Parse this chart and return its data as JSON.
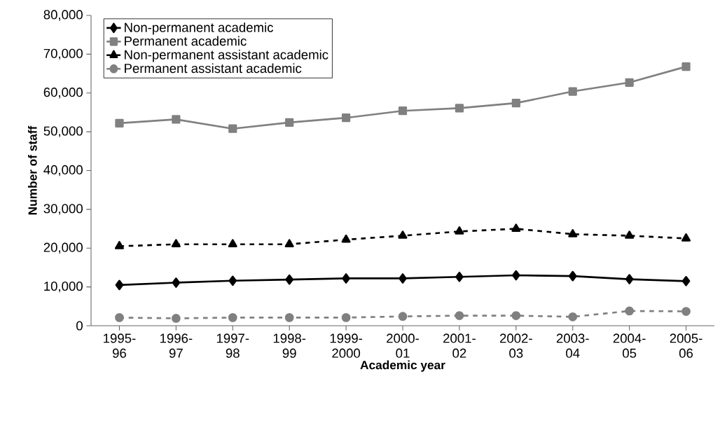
{
  "chart_data": {
    "type": "line",
    "xlabel": "Academic year",
    "ylabel": "Number of staff",
    "categories": [
      "1995-96",
      "1996-97",
      "1997-98",
      "1998-99",
      "1999-2000",
      "2000-01",
      "2001-02",
      "2002-03",
      "2003-04",
      "2004-05",
      "2005-06"
    ],
    "series": [
      {
        "name": "Non-permanent academic",
        "color": "#000000",
        "marker": "diamond",
        "line_style": "solid",
        "values": [
          10500,
          11100,
          11600,
          11900,
          12200,
          12200,
          12600,
          13000,
          12800,
          12000,
          11500
        ]
      },
      {
        "name": "Permanent academic",
        "color": "#808080",
        "marker": "square",
        "line_style": "solid",
        "values": [
          52200,
          53200,
          50800,
          52400,
          53600,
          55400,
          56100,
          57400,
          60400,
          62700,
          66800
        ]
      },
      {
        "name": "Non-permanent assistant academic",
        "color": "#000000",
        "marker": "triangle",
        "line_style": "dashed",
        "values": [
          20500,
          21000,
          21000,
          21000,
          22200,
          23200,
          24300,
          25000,
          23600,
          23200,
          22500
        ]
      },
      {
        "name": "Permanent assistant academic",
        "color": "#808080",
        "marker": "circle",
        "line_style": "dashed",
        "values": [
          2100,
          1900,
          2100,
          2100,
          2100,
          2400,
          2600,
          2600,
          2300,
          3800,
          3700
        ]
      }
    ],
    "ylim": [
      0,
      80000
    ],
    "yticks": [
      0,
      {
        "value": 10000,
        "label": "10,000"
      },
      {
        "value": 20000,
        "label": "20,000"
      },
      {
        "value": 30000,
        "label": "30,000"
      },
      {
        "value": 40000,
        "label": "40,000"
      },
      {
        "value": 50000,
        "label": "50,000"
      },
      {
        "value": 60000,
        "label": "60,000"
      },
      {
        "value": 70000,
        "label": "70,000"
      },
      {
        "value": 80000,
        "label": "80,000"
      }
    ],
    "grid": false,
    "legend": "top left"
  }
}
